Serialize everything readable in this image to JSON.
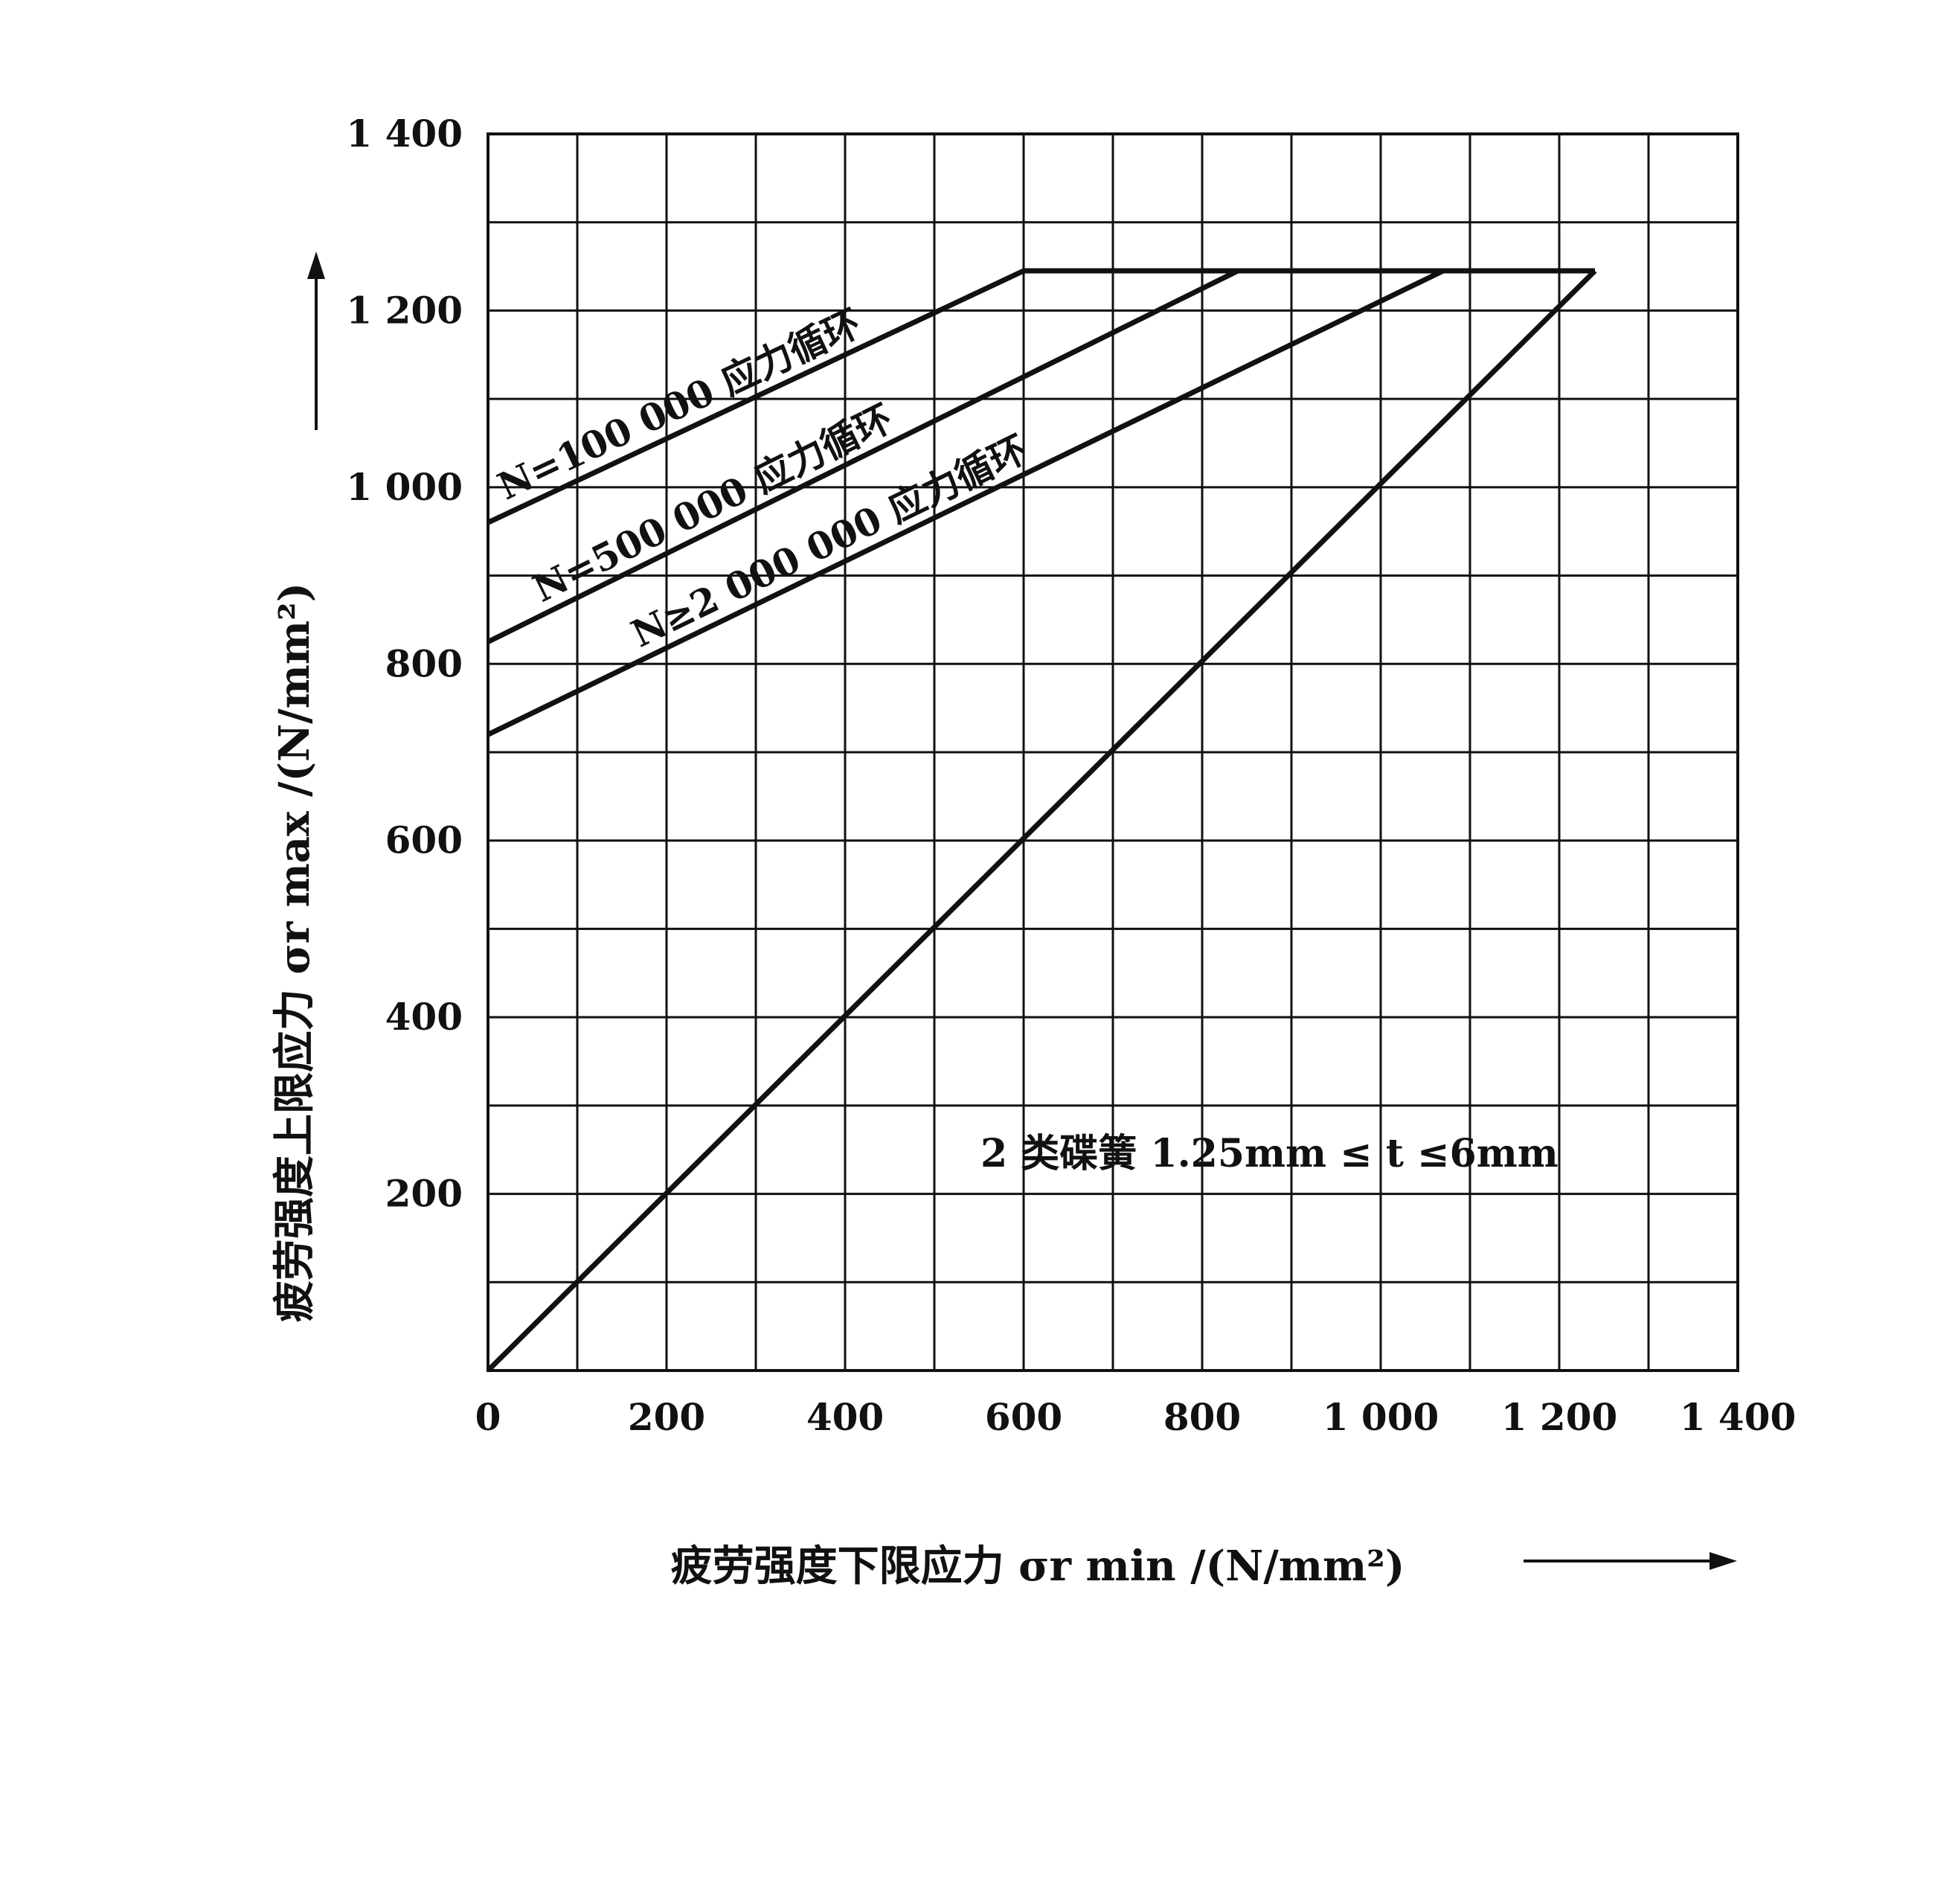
{
  "chart_data": {
    "type": "line",
    "xlabel": "疲劳强度下限应力 σr min /(N/mm²)",
    "ylabel": "疲劳强度上限应力 σr max /(N/mm²)",
    "xlim": [
      0,
      1400
    ],
    "ylim": [
      0,
      1400
    ],
    "x_ticks": [
      0,
      200,
      400,
      600,
      800,
      1000,
      1200,
      1400
    ],
    "y_ticks": [
      200,
      400,
      600,
      800,
      1000,
      1200,
      1400
    ],
    "x_tick_labels": [
      "0",
      "200",
      "400",
      "600",
      "800",
      "1 000",
      "1 200",
      "1 400"
    ],
    "y_tick_labels": [
      "200",
      "400",
      "600",
      "800",
      "1 000",
      "1 200",
      "1 400"
    ],
    "grid": true,
    "grid_step": 100,
    "series": [
      {
        "name": "N=100 000 应力循环",
        "x": [
          0,
          600,
          1240
        ],
        "y": [
          960,
          1245,
          1245
        ]
      },
      {
        "name": "N=500 000 应力循环",
        "x": [
          0,
          840
        ],
        "y": [
          825,
          1245
        ]
      },
      {
        "name": "N≥2 000 000 应力循环",
        "x": [
          0,
          1070
        ],
        "y": [
          720,
          1245
        ]
      },
      {
        "name": "",
        "x": [
          0,
          1240
        ],
        "y": [
          0,
          1245
        ]
      }
    ],
    "annotation": "2 类碟簧 1.25mm ≤ t ≤6mm",
    "colors": {
      "line": "#111111",
      "grid": "#111111",
      "background": "#ffffff"
    }
  }
}
